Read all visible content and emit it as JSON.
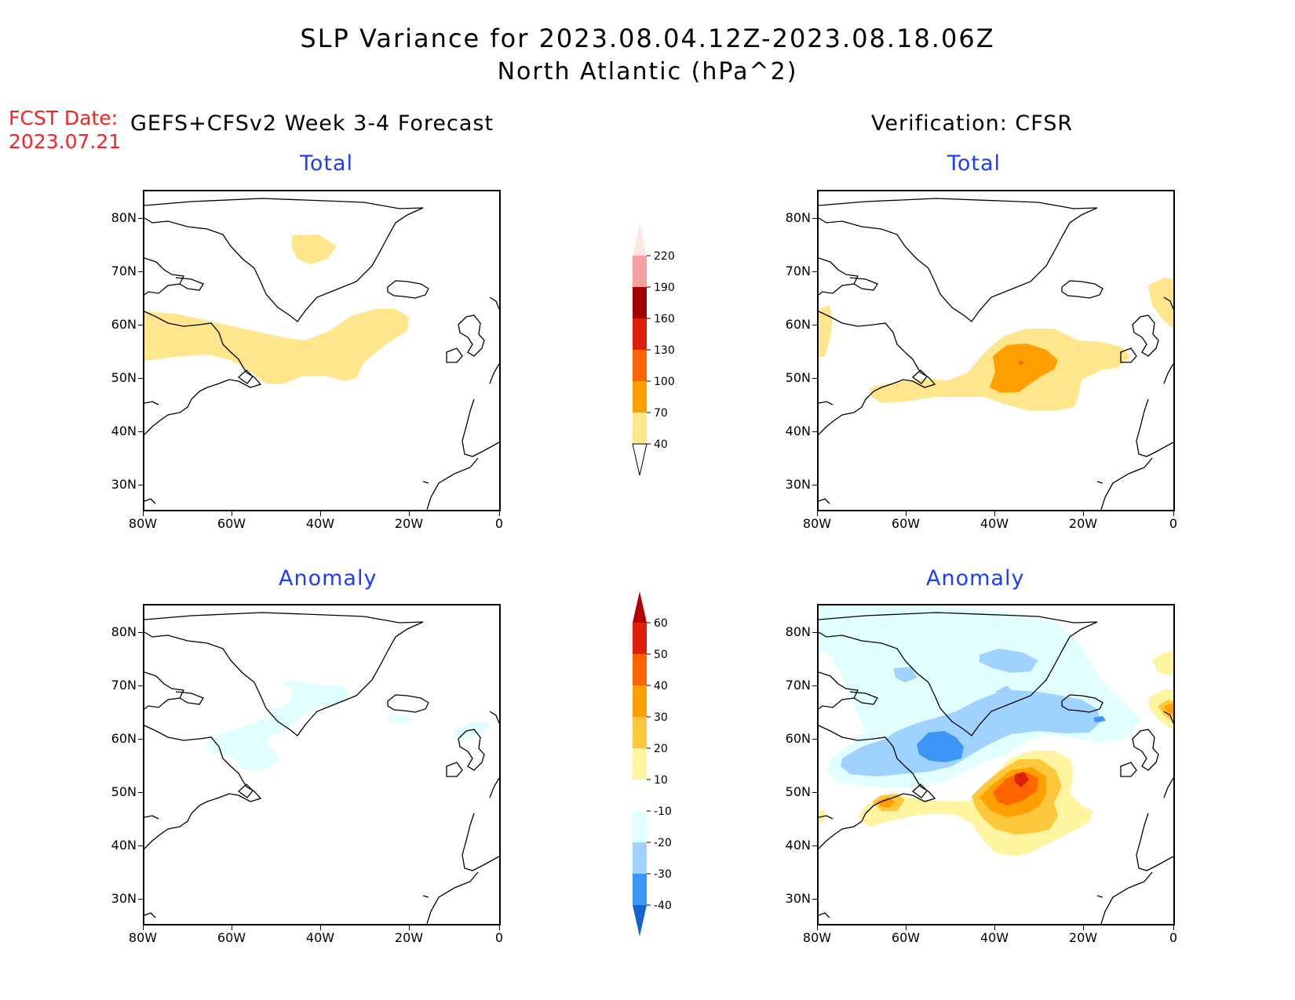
{
  "header": {
    "title_line1": "SLP Variance for 2023.08.04.12Z-2023.08.18.06Z",
    "title_line2": "North Atlantic (hPa^2)",
    "fcst_date_label": "FCST Date:",
    "fcst_date_value": "2023.07.21",
    "left_column": "GEFS+CFSv2 Week 3-4 Forecast",
    "right_column": "Verification: CFSR"
  },
  "panels": {
    "forecast_total": {
      "title": "Total"
    },
    "verification_total": {
      "title": "Total"
    },
    "forecast_anomaly": {
      "title": "Anomaly"
    },
    "verification_anomaly": {
      "title": "Anomaly"
    }
  },
  "axes": {
    "lat_labels": [
      "80N",
      "70N",
      "60N",
      "50N",
      "40N",
      "30N"
    ],
    "lon_labels": [
      "80W",
      "60W",
      "40W",
      "20W",
      "0"
    ]
  },
  "colorbar_total": {
    "levels": [
      "220",
      "190",
      "160",
      "130",
      "100",
      "70",
      "40"
    ],
    "colors": [
      "#fde6e4",
      "#f2a0a0",
      "#a00000",
      "#dc1e0a",
      "#ff6400",
      "#ffa000",
      "#ffe68c"
    ]
  },
  "colorbar_anomaly": {
    "levels": [
      "60",
      "50",
      "40",
      "30",
      "20",
      "10",
      "-10",
      "-20",
      "-30",
      "-40"
    ],
    "colors_top_down": [
      "#b40000",
      "#e11e0a",
      "#ff6400",
      "#ffa000",
      "#ffc83c",
      "#fff5a0",
      "#ffffff",
      "#e1ffff",
      "#a0d2ff",
      "#3c96f5",
      "#1464d2"
    ]
  },
  "colors": {
    "title_text": "#000000",
    "fcst_date": "#ff2020",
    "panel_title": "#1e3cff"
  }
}
